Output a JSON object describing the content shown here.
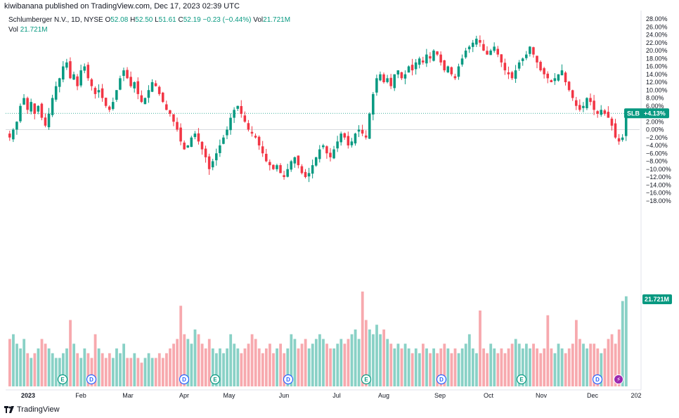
{
  "header": {
    "published": "kiwibanana published on TradingView.com, Dec 17, 2023 02:39 UTC"
  },
  "legend": {
    "symbol": "Schlumberger N.V., 1D, NYSE",
    "open_label": "O",
    "open": "52.08",
    "high_label": "H",
    "high": "52.50",
    "low_label": "L",
    "low": "51.61",
    "close_label": "C",
    "close": "52.19",
    "change": "−0.23 (−0.44%)",
    "vol_label": "Vol",
    "vol": "21.721M"
  },
  "volume_legend": {
    "label": "Vol",
    "value": "21.721M"
  },
  "price_badge": {
    "symbol": "SLB",
    "value": "+4.13%"
  },
  "volume_badge": "21.721M",
  "footer": {
    "logo": "TradingView"
  },
  "colors": {
    "up": "#089981",
    "down": "#F23645",
    "up_vol": "#89D1C6",
    "down_vol": "#F7A9AE"
  },
  "chart_data": {
    "type": "candlestick",
    "y_axis_unit": "percent",
    "y_ticks": [
      "28.00%",
      "26.00%",
      "24.00%",
      "22.00%",
      "20.00%",
      "18.00%",
      "16.00%",
      "14.00%",
      "12.00%",
      "10.00%",
      "8.00%",
      "6.00%",
      "4.00%",
      "2.00%",
      "0.00%",
      "−2.00%",
      "−4.00%",
      "−6.00%",
      "−8.00%",
      "−10.00%",
      "−12.00%",
      "−14.00%",
      "−16.00%",
      "−18.00%"
    ],
    "x_labels": [
      "2023",
      "Feb",
      "Mar",
      "Apr",
      "May",
      "Jun",
      "Jul",
      "Aug",
      "Sep",
      "Oct",
      "Nov",
      "Dec",
      "202"
    ],
    "event_markers": [
      {
        "type": "E",
        "month": "Jan"
      },
      {
        "type": "D",
        "month": "Feb"
      },
      {
        "type": "D",
        "month": "Apr"
      },
      {
        "type": "E",
        "month": "Apr"
      },
      {
        "type": "D",
        "month": "Jun"
      },
      {
        "type": "E",
        "month": "Jul"
      },
      {
        "type": "D",
        "month": "Sep"
      },
      {
        "type": "E",
        "month": "Oct"
      },
      {
        "type": "D",
        "month": "Dec"
      },
      {
        "type": "split",
        "month": "Dec"
      }
    ],
    "last_value_percent": 4.13,
    "closes_percent": [
      -2,
      0,
      2,
      6,
      8,
      5,
      7,
      4,
      6,
      3,
      1,
      4,
      8,
      11,
      13,
      16,
      17,
      13,
      14,
      11,
      15,
      16,
      13,
      11,
      9,
      10,
      8,
      6,
      5,
      7,
      10,
      13,
      15,
      13,
      11,
      12,
      9,
      7,
      8,
      10,
      12,
      11,
      9,
      7,
      5,
      4,
      2,
      0,
      -3,
      -5,
      -4,
      -2,
      -1,
      -3,
      -5,
      -7,
      -10,
      -8,
      -6,
      -4,
      -2,
      0,
      3,
      5,
      6,
      4,
      2,
      0,
      -1,
      -2,
      -4,
      -6,
      -8,
      -9,
      -10,
      -9,
      -11,
      -12,
      -10,
      -8,
      -7,
      -9,
      -11,
      -12,
      -11,
      -9,
      -7,
      -5,
      -4,
      -6,
      -7,
      -5,
      -3,
      -1,
      -2,
      -4,
      -3,
      -1,
      0,
      -1,
      -2,
      4,
      9,
      13,
      14,
      12,
      13,
      11,
      14,
      15,
      13,
      14,
      16,
      15,
      17,
      18,
      17,
      19,
      18,
      20,
      19,
      17,
      15,
      16,
      14,
      13,
      16,
      18,
      20,
      21,
      22,
      23,
      22,
      20,
      19,
      20,
      21,
      19,
      17,
      15,
      14,
      13,
      15,
      17,
      18,
      19,
      21,
      19,
      17,
      15,
      14,
      13,
      12,
      13,
      14,
      15,
      12,
      10,
      8,
      6,
      5,
      6,
      8,
      7,
      5,
      4,
      5,
      4,
      3,
      1,
      -2,
      -3,
      -2,
      4
    ],
    "volume_relative": [
      0.5,
      0.55,
      0.45,
      0.4,
      0.5,
      0.35,
      0.3,
      0.35,
      0.4,
      0.5,
      0.45,
      0.4,
      0.35,
      0.3,
      0.3,
      0.35,
      0.4,
      0.7,
      0.45,
      0.35,
      0.3,
      0.4,
      0.35,
      0.3,
      0.55,
      0.4,
      0.35,
      0.3,
      0.35,
      0.3,
      0.4,
      0.35,
      0.45,
      0.3,
      0.3,
      0.35,
      0.3,
      0.25,
      0.3,
      0.35,
      0.3,
      0.3,
      0.35,
      0.3,
      0.35,
      0.4,
      0.45,
      0.5,
      0.85,
      0.55,
      0.5,
      0.45,
      0.6,
      0.55,
      0.45,
      0.4,
      0.5,
      0.4,
      0.35,
      0.4,
      0.35,
      0.4,
      0.55,
      0.45,
      0.4,
      0.35,
      0.4,
      0.45,
      0.55,
      0.5,
      0.4,
      0.35,
      0.4,
      0.45,
      0.35,
      0.4,
      0.45,
      0.35,
      0.4,
      0.55,
      0.5,
      0.4,
      0.45,
      0.5,
      0.4,
      0.45,
      0.5,
      0.55,
      0.5,
      0.45,
      0.4,
      0.4,
      0.45,
      0.5,
      0.45,
      0.5,
      0.55,
      0.6,
      0.5,
      1.0,
      0.7,
      0.6,
      0.55,
      0.65,
      0.55,
      0.6,
      0.5,
      0.45,
      0.4,
      0.45,
      0.4,
      0.45,
      0.4,
      0.35,
      0.4,
      0.35,
      0.45,
      0.4,
      0.35,
      0.4,
      0.35,
      0.4,
      0.45,
      0.4,
      0.35,
      0.4,
      0.35,
      0.4,
      0.45,
      0.55,
      0.4,
      0.35,
      0.8,
      0.4,
      0.35,
      0.45,
      0.4,
      0.35,
      0.4,
      0.35,
      0.4,
      0.45,
      0.5,
      0.45,
      0.4,
      0.45,
      0.4,
      0.45,
      0.4,
      0.35,
      0.4,
      0.75,
      0.4,
      0.35,
      0.45,
      0.4,
      0.35,
      0.4,
      0.45,
      0.7,
      0.5,
      0.45,
      0.4,
      0.45,
      0.45,
      0.4,
      0.35,
      0.4,
      0.5,
      0.55,
      0.45,
      0.6,
      0.9,
      0.95
    ]
  }
}
